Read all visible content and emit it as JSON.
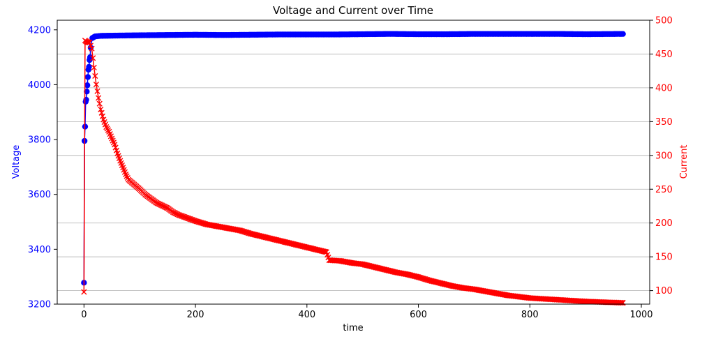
{
  "chart_data": {
    "type": "line",
    "title": "Voltage and Current over Time",
    "xlabel": "time",
    "xlim": [
      -48,
      1015
    ],
    "xticks": [
      0,
      200,
      400,
      600,
      800,
      1000
    ],
    "grid": "horizontal lines at right-axis ticks",
    "y_left": {
      "label": "Voltage",
      "color": "#0000ff",
      "lim": [
        3200,
        4235
      ],
      "ticks": [
        3200,
        3400,
        3600,
        3800,
        4000,
        4200
      ]
    },
    "y_right": {
      "label": "Current",
      "color": "#ff0000",
      "lim": [
        80,
        500
      ],
      "ticks": [
        100,
        150,
        200,
        250,
        300,
        350,
        400,
        450,
        500
      ]
    },
    "series": [
      {
        "name": "Voltage",
        "axis": "left",
        "marker": "circle",
        "color": "#0000ff",
        "points": [
          [
            0,
            3278
          ],
          [
            1,
            3795
          ],
          [
            2,
            3847
          ],
          [
            3,
            3938
          ],
          [
            4,
            3945
          ],
          [
            5,
            3975
          ],
          [
            6,
            3998
          ],
          [
            7,
            4028
          ],
          [
            8,
            4055
          ],
          [
            9,
            4065
          ],
          [
            10,
            4090
          ],
          [
            11,
            4100
          ],
          [
            12,
            4135
          ],
          [
            15,
            4170
          ],
          [
            20,
            4176
          ],
          [
            30,
            4178
          ],
          [
            60,
            4179
          ],
          [
            100,
            4180
          ],
          [
            150,
            4181
          ],
          [
            200,
            4182
          ],
          [
            250,
            4181
          ],
          [
            300,
            4182
          ],
          [
            350,
            4183
          ],
          [
            400,
            4183
          ],
          [
            450,
            4183
          ],
          [
            500,
            4184
          ],
          [
            550,
            4185
          ],
          [
            600,
            4184
          ],
          [
            650,
            4184
          ],
          [
            700,
            4185
          ],
          [
            750,
            4185
          ],
          [
            800,
            4185
          ],
          [
            850,
            4185
          ],
          [
            900,
            4184
          ],
          [
            967,
            4185
          ]
        ]
      },
      {
        "name": "Current",
        "axis": "right",
        "marker": "x",
        "color": "#ff0000",
        "points": [
          [
            0,
            98
          ],
          [
            2,
            470
          ],
          [
            5,
            468
          ],
          [
            10,
            467
          ],
          [
            14,
            458
          ],
          [
            18,
            430
          ],
          [
            22,
            405
          ],
          [
            26,
            385
          ],
          [
            30,
            368
          ],
          [
            35,
            353
          ],
          [
            40,
            342
          ],
          [
            45,
            335
          ],
          [
            50,
            325
          ],
          [
            55,
            316
          ],
          [
            60,
            303
          ],
          [
            65,
            292
          ],
          [
            70,
            282
          ],
          [
            75,
            272
          ],
          [
            80,
            264
          ],
          [
            90,
            257
          ],
          [
            100,
            250
          ],
          [
            110,
            242
          ],
          [
            120,
            236
          ],
          [
            130,
            230
          ],
          [
            140,
            226
          ],
          [
            150,
            222
          ],
          [
            160,
            216
          ],
          [
            170,
            212
          ],
          [
            180,
            209
          ],
          [
            190,
            206
          ],
          [
            200,
            203
          ],
          [
            220,
            198
          ],
          [
            240,
            195
          ],
          [
            260,
            192
          ],
          [
            280,
            189
          ],
          [
            300,
            184
          ],
          [
            320,
            180
          ],
          [
            340,
            176
          ],
          [
            360,
            172
          ],
          [
            380,
            168
          ],
          [
            400,
            164
          ],
          [
            420,
            160
          ],
          [
            435,
            157
          ],
          [
            440,
            145
          ],
          [
            460,
            144
          ],
          [
            480,
            141
          ],
          [
            500,
            139
          ],
          [
            520,
            135
          ],
          [
            540,
            131
          ],
          [
            560,
            127
          ],
          [
            580,
            124
          ],
          [
            600,
            120
          ],
          [
            620,
            115
          ],
          [
            640,
            111
          ],
          [
            660,
            107
          ],
          [
            680,
            104
          ],
          [
            700,
            102
          ],
          [
            720,
            99
          ],
          [
            740,
            96
          ],
          [
            760,
            93
          ],
          [
            780,
            91
          ],
          [
            800,
            89
          ],
          [
            820,
            88
          ],
          [
            840,
            87
          ],
          [
            860,
            86
          ],
          [
            880,
            85
          ],
          [
            900,
            84
          ],
          [
            930,
            83
          ],
          [
            967,
            82
          ]
        ]
      }
    ]
  }
}
